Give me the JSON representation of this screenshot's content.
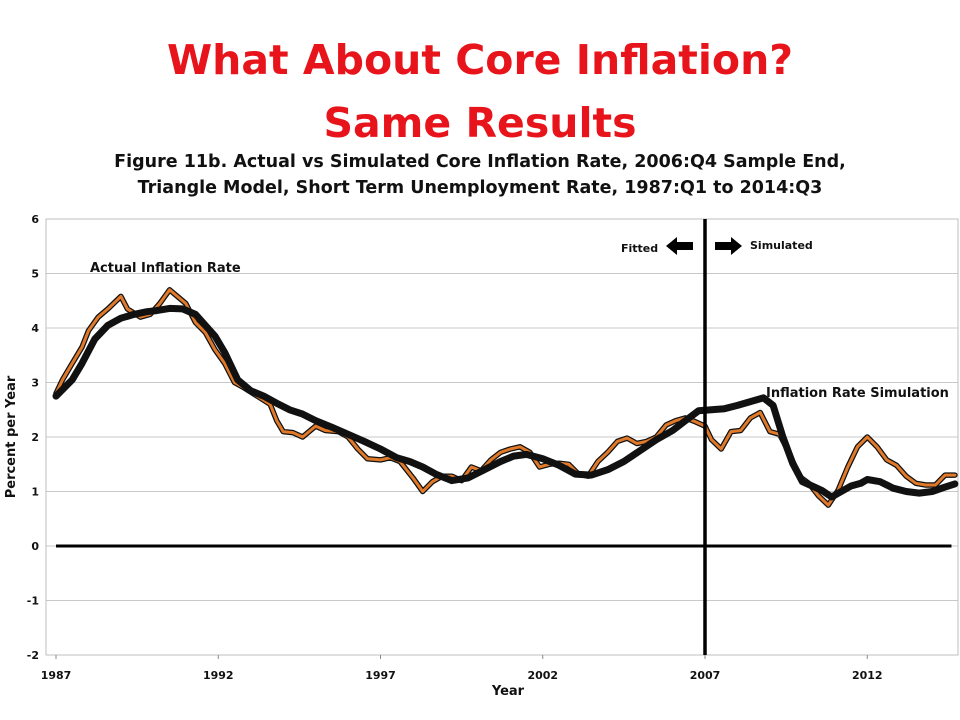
{
  "slide": {
    "title_line1": "What About Core Inflation?",
    "title_line2": "Same Results"
  },
  "chart_data": {
    "type": "line",
    "title_line1": "Figure 11b. Actual vs Simulated Core Inflation Rate, 2006:Q4 Sample End,",
    "title_line2": "Triangle Model, Short Term Unemployment Rate, 1987:Q1 to 2014:Q3",
    "xlabel": "Year",
    "ylabel": "Percent per Year",
    "xlim": [
      1987,
      2014.75
    ],
    "ylim": [
      -2,
      6
    ],
    "x_ticks": [
      "1987",
      "1992",
      "1997",
      "2002",
      "2007",
      "2012"
    ],
    "y_ticks": [
      "6",
      "5",
      "4",
      "3",
      "2",
      "1",
      "0",
      "-1",
      "-2"
    ],
    "grid": "horizontal",
    "reference_lines": {
      "zero_line": 0,
      "sample_end": 2007
    },
    "annotations": {
      "actual_label": "Actual Inflation Rate",
      "simulation_label": "Inflation Rate Simulation",
      "fitted_label": "Fitted",
      "simulated_label": "Simulated"
    },
    "colors": {
      "actual": "#e07a2a",
      "simulated": "#111111",
      "grid": "#c8c8c8",
      "title": "#e8141b"
    },
    "series": [
      {
        "key": "actual",
        "x": [
          1987.0,
          1987.2,
          1987.5,
          1987.8,
          1988.0,
          1988.3,
          1988.6,
          1989.0,
          1989.2,
          1989.6,
          1989.9,
          1990.2,
          1990.5,
          1990.8,
          1991.0,
          1991.3,
          1991.6,
          1991.9,
          1992.2,
          1992.5,
          1992.8,
          1993.2,
          1993.6,
          1993.8,
          1994.0,
          1994.3,
          1994.6,
          1995.0,
          1995.3,
          1995.7,
          1996.0,
          1996.3,
          1996.6,
          1997.0,
          1997.3,
          1997.6,
          1998.0,
          1998.3,
          1998.6,
          1998.9,
          1999.2,
          1999.5,
          1999.8,
          2000.1,
          2000.4,
          2000.7,
          2001.0,
          2001.3,
          2001.6,
          2001.9,
          2002.2,
          2002.5,
          2002.8,
          2003.1,
          2003.4,
          2003.7,
          2004.0,
          2004.3,
          2004.6,
          2004.9,
          2005.2,
          2005.5,
          2005.8,
          2006.1,
          2006.4,
          2006.7,
          2007.0,
          2007.2,
          2007.5,
          2007.8,
          2008.1,
          2008.4,
          2008.7,
          2009.0,
          2009.3,
          2009.6,
          2009.9,
          2010.2,
          2010.5,
          2010.8,
          2011.1,
          2011.4,
          2011.7,
          2012.0,
          2012.3,
          2012.6,
          2012.9,
          2013.2,
          2013.5,
          2013.8,
          2014.1,
          2014.4,
          2014.7
        ],
        "y": [
          2.8,
          3.05,
          3.35,
          3.65,
          3.95,
          4.2,
          4.35,
          4.58,
          4.35,
          4.2,
          4.25,
          4.45,
          4.7,
          4.55,
          4.45,
          4.1,
          3.92,
          3.6,
          3.35,
          3.0,
          2.9,
          2.75,
          2.6,
          2.3,
          2.1,
          2.08,
          2.0,
          2.2,
          2.12,
          2.1,
          2.0,
          1.78,
          1.6,
          1.58,
          1.62,
          1.55,
          1.25,
          1.0,
          1.18,
          1.28,
          1.28,
          1.2,
          1.45,
          1.38,
          1.58,
          1.72,
          1.78,
          1.82,
          1.72,
          1.45,
          1.5,
          1.52,
          1.5,
          1.32,
          1.28,
          1.55,
          1.72,
          1.92,
          1.98,
          1.88,
          1.92,
          2.0,
          2.22,
          2.3,
          2.35,
          2.28,
          2.2,
          1.95,
          1.78,
          2.1,
          2.12,
          2.35,
          2.45,
          2.1,
          2.05,
          1.7,
          1.28,
          1.15,
          0.92,
          0.75,
          1.02,
          1.45,
          1.82,
          2.0,
          1.82,
          1.58,
          1.48,
          1.28,
          1.15,
          1.12,
          1.12,
          1.3,
          1.3
        ]
      },
      {
        "key": "simulated",
        "x": [
          1987.0,
          1987.5,
          1987.8,
          1988.2,
          1988.6,
          1989.0,
          1989.4,
          1989.8,
          1990.1,
          1990.5,
          1990.9,
          1991.3,
          1991.6,
          1991.9,
          1992.2,
          1992.6,
          1993.0,
          1993.4,
          1993.8,
          1994.2,
          1994.6,
          1995.0,
          1995.5,
          1996.0,
          1996.5,
          1997.0,
          1997.5,
          1997.9,
          1998.3,
          1998.7,
          1999.2,
          1999.7,
          2000.2,
          2000.7,
          2001.1,
          2001.5,
          2002.0,
          2002.5,
          2003.0,
          2003.5,
          2004.0,
          2004.5,
          2005.0,
          2005.5,
          2006.0,
          2006.4,
          2006.8,
          2007.2,
          2007.6,
          2008.0,
          2008.4,
          2008.8,
          2009.1,
          2009.4,
          2009.7,
          2010.0,
          2010.3,
          2010.6,
          2010.9,
          2011.2,
          2011.5,
          2011.8,
          2012.0,
          2012.4,
          2012.8,
          2013.2,
          2013.6,
          2014.0,
          2014.4,
          2014.7
        ],
        "y": [
          2.75,
          3.05,
          3.35,
          3.8,
          4.05,
          4.18,
          4.25,
          4.3,
          4.32,
          4.36,
          4.35,
          4.25,
          4.05,
          3.85,
          3.55,
          3.05,
          2.85,
          2.75,
          2.62,
          2.5,
          2.42,
          2.3,
          2.18,
          2.05,
          1.92,
          1.78,
          1.62,
          1.55,
          1.45,
          1.32,
          1.2,
          1.25,
          1.4,
          1.55,
          1.65,
          1.68,
          1.6,
          1.48,
          1.32,
          1.3,
          1.4,
          1.55,
          1.75,
          1.95,
          2.12,
          2.3,
          2.48,
          2.5,
          2.52,
          2.58,
          2.65,
          2.72,
          2.58,
          2.0,
          1.52,
          1.18,
          1.1,
          1.02,
          0.9,
          1.0,
          1.1,
          1.15,
          1.22,
          1.18,
          1.06,
          1.0,
          0.97,
          1.0,
          1.08,
          1.14
        ]
      }
    ]
  }
}
